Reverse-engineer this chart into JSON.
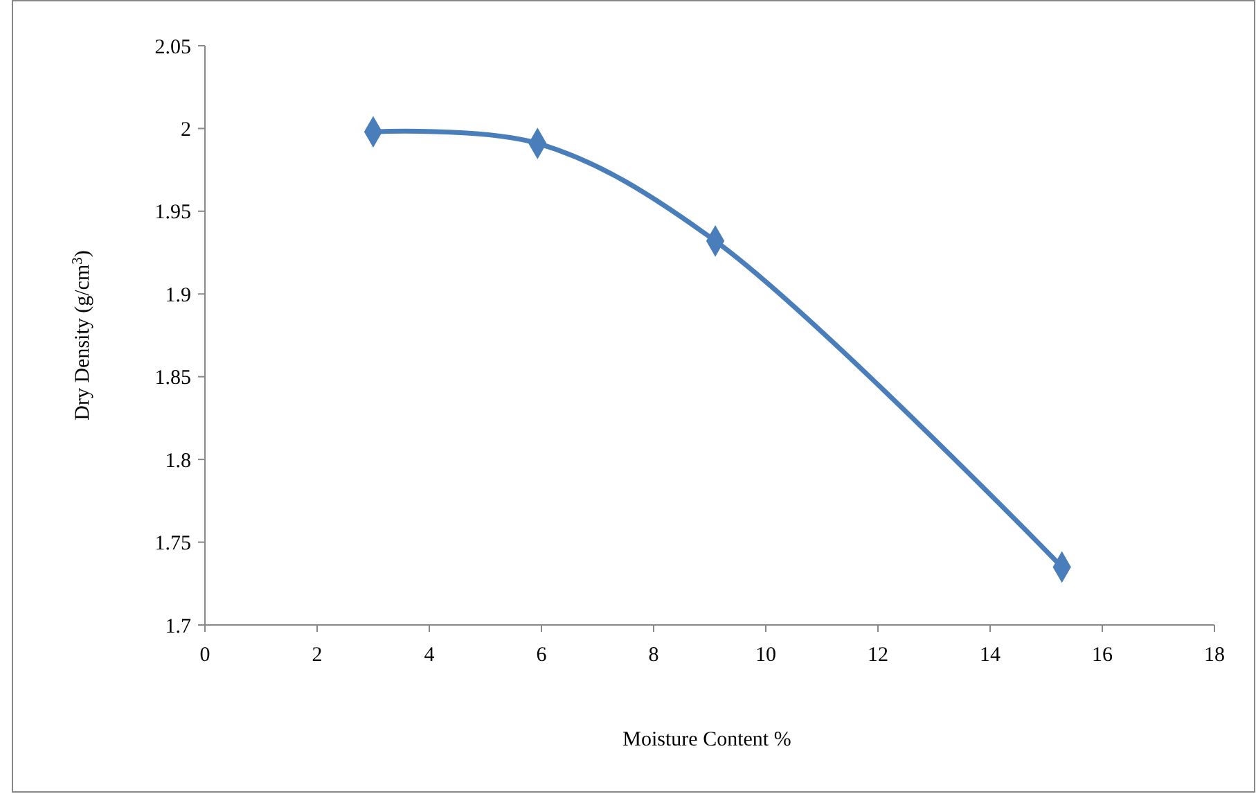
{
  "chart_data": {
    "type": "line",
    "xlabel": "Moisture Content %",
    "ylabel": "Dry Density (g/cm$^{3}$)",
    "x": [
      3.0,
      5.93,
      9.1,
      15.28
    ],
    "series": [
      {
        "color": "#4a7ebb",
        "values": [
          1.998,
          1.991,
          1.932,
          1.735
        ]
      }
    ],
    "xlim": [
      0,
      18
    ],
    "xticks": [
      0,
      2,
      4,
      6,
      8,
      10,
      12,
      14,
      16,
      18
    ],
    "ylim": [
      1.7,
      2.05
    ],
    "yticks": [
      1.7,
      1.75,
      1.8,
      1.85,
      1.9,
      1.95,
      2,
      2.05
    ],
    "marker": "diamond",
    "line_style": "solid"
  }
}
